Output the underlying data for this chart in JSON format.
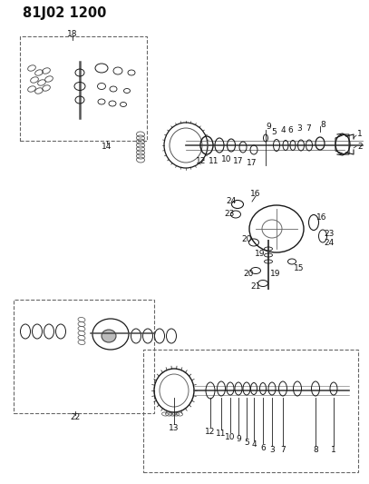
{
  "title": "81J02 1200",
  "bg_color": "#ffffff",
  "fig_width": 4.07,
  "fig_height": 5.33,
  "dpi": 100
}
